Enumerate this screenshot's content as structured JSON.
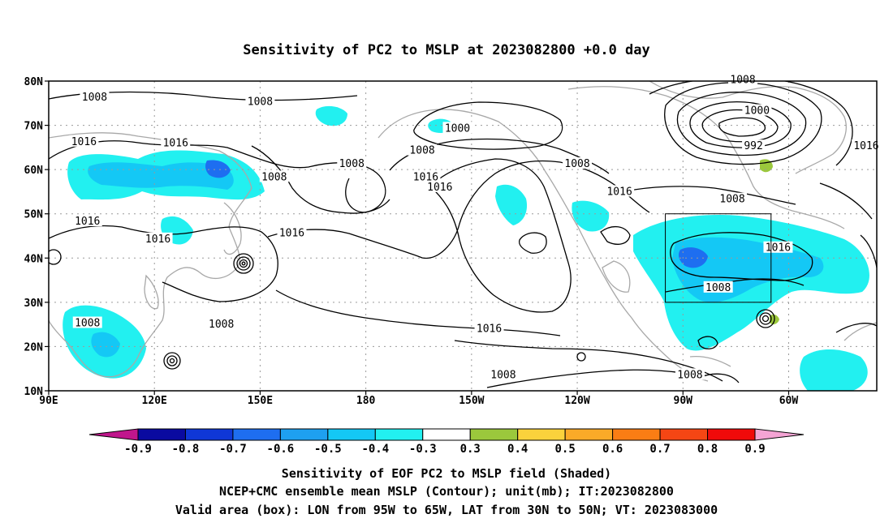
{
  "title": "Sensitivity of PC2 to MSLP at 2023082800 +0.0 day",
  "map": {
    "lat_ticks": [
      "80N",
      "70N",
      "60N",
      "50N",
      "40N",
      "30N",
      "20N",
      "10N"
    ],
    "lon_ticks": [
      "90E",
      "120E",
      "150E",
      "180",
      "150W",
      "120W",
      "90W",
      "60W"
    ],
    "lon_range_deg_east": [
      90,
      325
    ],
    "lat_range_deg": [
      10,
      80
    ],
    "gridlines": "dotted",
    "coastline_color": "#a8a8a8",
    "contour_color": "#000000",
    "contour_labels": [
      {
        "text": "1008",
        "lon": 103,
        "lat": 76.3
      },
      {
        "text": "1008",
        "lon": 150,
        "lat": 75.3
      },
      {
        "text": "1016",
        "lon": 100,
        "lat": 66.3
      },
      {
        "text": "1016",
        "lon": 126,
        "lat": 66.0
      },
      {
        "text": "1008",
        "lon": 154,
        "lat": 58.3
      },
      {
        "text": "1008",
        "lon": 176,
        "lat": 61.3
      },
      {
        "text": "1000",
        "lon": 206,
        "lat": 69.3
      },
      {
        "text": "1008",
        "lon": 196,
        "lat": 64.3
      },
      {
        "text": "1016",
        "lon": 197,
        "lat": 58.3
      },
      {
        "text": "1016",
        "lon": 201,
        "lat": 56.0
      },
      {
        "text": "1008",
        "lon": 240,
        "lat": 61.3
      },
      {
        "text": "1016",
        "lon": 252,
        "lat": 55.0
      },
      {
        "text": "1008",
        "lon": 287,
        "lat": 80.3
      },
      {
        "text": "1000",
        "lon": 291,
        "lat": 73.3
      },
      {
        "text": "992",
        "lon": 290,
        "lat": 65.3
      },
      {
        "text": "1016",
        "lon": 322,
        "lat": 65.3
      },
      {
        "text": "1008",
        "lon": 284,
        "lat": 53.3
      },
      {
        "text": "1016",
        "lon": 101,
        "lat": 48.3
      },
      {
        "text": "1016",
        "lon": 121,
        "lat": 44.3
      },
      {
        "text": "1016",
        "lon": 159,
        "lat": 45.6
      },
      {
        "text": "1016",
        "lon": 297,
        "lat": 42.3
      },
      {
        "text": "1008",
        "lon": 280,
        "lat": 33.3
      },
      {
        "text": "1008",
        "lon": 101,
        "lat": 25.3
      },
      {
        "text": "1008",
        "lon": 139,
        "lat": 25.0
      },
      {
        "text": "1016",
        "lon": 215,
        "lat": 24.0
      },
      {
        "text": "1008",
        "lon": 219,
        "lat": 13.6
      },
      {
        "text": "1008",
        "lon": 272,
        "lat": 13.6
      }
    ],
    "valid_box": {
      "lon_min": 265,
      "lon_max": 295,
      "lat_min": 30,
      "lat_max": 50
    }
  },
  "colorbar": {
    "labels": [
      "-0.9",
      "-0.8",
      "-0.7",
      "-0.6",
      "-0.5",
      "-0.4",
      "-0.3",
      "0.3",
      "0.4",
      "0.5",
      "0.6",
      "0.7",
      "0.8",
      "0.9"
    ],
    "low_extend_color": "#c0168c",
    "high_extend_color": "#f4a4d4",
    "colors": [
      "#0a0aa0",
      "#0f37d7",
      "#1e6ef0",
      "#1ea0f0",
      "#14c8f5",
      "#22f0f0",
      "#ffffff",
      "#9bc83c",
      "#fad23c",
      "#faaa28",
      "#fa7d14",
      "#f54614",
      "#f00a0a"
    ]
  },
  "captions": [
    "Sensitivity of EOF PC2 to MSLP field (Shaded)",
    "NCEP+CMC ensemble mean MSLP (Contour); unit(mb); IT:2023082800",
    "Valid area (box): LON from 95W to 65W, LAT from 30N to 50N; VT: 2023083000"
  ]
}
